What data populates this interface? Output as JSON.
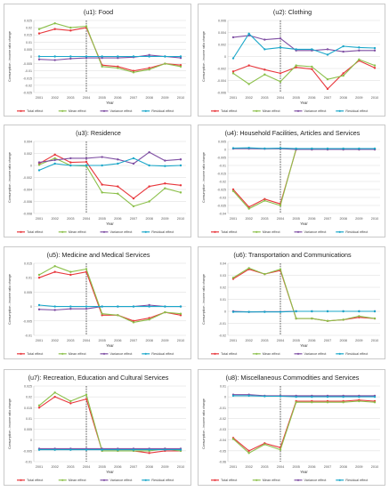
{
  "legend_labels": [
    "Total effect",
    "Mean effect",
    "Variance effect",
    "Residual effect"
  ],
  "colors": {
    "Total effect": "#e8373c",
    "Mean effect": "#8cc04b",
    "Variance effect": "#7f4fa3",
    "Residual effect": "#1aa7c9",
    "grid": "#d9d9d9",
    "border": "#c9c9c9"
  },
  "chart_data": [
    {
      "type": "line",
      "title": "(u1): Food",
      "xlabel": "Year",
      "ylabel": "Consumption - income ratio change",
      "x": [
        "2001",
        "2002",
        "2003",
        "2004",
        "2005",
        "2006",
        "2007",
        "2008",
        "2009",
        "2010"
      ],
      "ylim": [
        -0.025,
        0.025
      ],
      "yticks": [
        "0.025",
        "0.02",
        "0.015",
        "0.01",
        "0.005",
        "0",
        "-0.005",
        "-0.01",
        "-0.015",
        "-0.02",
        "-0.025"
      ],
      "ytick_values": [
        0.025,
        0.02,
        0.015,
        0.01,
        0.005,
        0,
        -0.005,
        -0.01,
        -0.015,
        -0.02,
        -0.025
      ],
      "vline": "2004",
      "series": [
        {
          "name": "Total effect",
          "values": [
            0.016,
            0.019,
            0.018,
            0.02,
            -0.006,
            -0.007,
            -0.01,
            -0.008,
            -0.005,
            -0.006
          ]
        },
        {
          "name": "Mean effect",
          "values": [
            0.019,
            0.023,
            0.02,
            0.021,
            -0.007,
            -0.008,
            -0.011,
            -0.009,
            -0.005,
            -0.007
          ]
        },
        {
          "name": "Variance effect",
          "values": [
            -0.002,
            -0.0025,
            -0.0015,
            -0.001,
            -0.001,
            -0.001,
            -0.0005,
            0.001,
            0,
            -0.001
          ]
        },
        {
          "name": "Residual effect",
          "values": [
            0,
            0,
            0,
            0,
            0,
            0,
            0,
            0,
            0,
            0
          ]
        }
      ]
    },
    {
      "type": "line",
      "title": "(u2): Clothing",
      "xlabel": "Year",
      "ylabel": "Consumption - income ratio change",
      "x": [
        "2001",
        "2002",
        "2003",
        "2004",
        "2005",
        "2006",
        "2007",
        "2008",
        "2009",
        "2010"
      ],
      "ylim": [
        -0.006,
        0.006
      ],
      "yticks": [
        "0.006",
        "0.004",
        "0.002",
        "0",
        "-0.002",
        "-0.004",
        "-0.006"
      ],
      "ytick_values": [
        0.006,
        0.004,
        0.002,
        0,
        -0.002,
        -0.004,
        -0.006
      ],
      "vline": "2004",
      "series": [
        {
          "name": "Total effect",
          "values": [
            -0.0025,
            -0.0015,
            -0.0022,
            -0.0028,
            -0.0018,
            -0.0021,
            -0.0054,
            -0.0028,
            -0.0007,
            -0.0019
          ]
        },
        {
          "name": "Mean effect",
          "values": [
            -0.0028,
            -0.0046,
            -0.003,
            -0.0042,
            -0.0015,
            -0.0017,
            -0.0038,
            -0.0032,
            -0.0005,
            -0.0015
          ]
        },
        {
          "name": "Variance effect",
          "values": [
            0.0032,
            0.0035,
            0.0028,
            0.003,
            0.001,
            0.001,
            0.0012,
            0.0008,
            0.001,
            0.001
          ]
        },
        {
          "name": "Residual effect",
          "values": [
            -0.0003,
            0.0038,
            0.0012,
            0.0015,
            0.0012,
            0.0012,
            0.0003,
            0.0017,
            0.0015,
            0.0014
          ]
        }
      ]
    },
    {
      "type": "line",
      "title": "(u3): Residence",
      "xlabel": "Year",
      "ylabel": "Consumption - income ratio change",
      "x": [
        "2001",
        "2002",
        "2003",
        "2004",
        "2005",
        "2006",
        "2007",
        "2008",
        "2009",
        "2010"
      ],
      "ylim": [
        -0.008,
        0.004
      ],
      "yticks": [
        "0.004",
        "0.002",
        "0",
        "-0.002",
        "-0.004",
        "-0.006",
        "-0.008"
      ],
      "ytick_values": [
        0.004,
        0.002,
        0,
        -0.002,
        -0.004,
        -0.006,
        -0.008
      ],
      "vline": "2004",
      "series": [
        {
          "name": "Total effect",
          "values": [
            0.0003,
            0.0018,
            0.0005,
            0.0006,
            -0.0032,
            -0.0035,
            -0.0055,
            -0.0035,
            -0.003,
            -0.0033
          ]
        },
        {
          "name": "Mean effect",
          "values": [
            0.0001,
            0.0012,
            0,
            -0.0001,
            -0.0045,
            -0.0047,
            -0.0068,
            -0.006,
            -0.0038,
            -0.0045
          ]
        },
        {
          "name": "Variance effect",
          "values": [
            0.0005,
            0.0009,
            0.0012,
            0.0012,
            0.0014,
            0.001,
            0.0003,
            0.0022,
            0.0008,
            0.001
          ]
        },
        {
          "name": "Residual effect",
          "values": [
            -0.0008,
            0.0003,
            0,
            0,
            0,
            0.0003,
            0.0012,
            0,
            -0.0001,
            0
          ]
        }
      ]
    },
    {
      "type": "line",
      "title": "(u4): Household Facilities, Articles and Services",
      "xlabel": "Year",
      "ylabel": "Consumption - income ratio change",
      "x": [
        "2001",
        "2002",
        "2003",
        "2004",
        "2005",
        "2006",
        "2007",
        "2008",
        "2009",
        "2010"
      ],
      "ylim": [
        -0.04,
        0.005
      ],
      "yticks": [
        "0.005",
        "0",
        "-0.005",
        "-0.01",
        "-0.015",
        "-0.02",
        "-0.025",
        "-0.03",
        "-0.035",
        "-0.04"
      ],
      "ytick_values": [
        0.005,
        0,
        -0.005,
        -0.01,
        -0.015,
        -0.02,
        -0.025,
        -0.03,
        -0.035,
        -0.04
      ],
      "vline": "2004",
      "series": [
        {
          "name": "Total effect",
          "values": [
            -0.025,
            -0.036,
            -0.031,
            -0.034,
            0,
            0,
            0,
            0,
            0,
            0
          ]
        },
        {
          "name": "Mean effect",
          "values": [
            -0.026,
            -0.037,
            -0.032,
            -0.035,
            0.0005,
            0.0005,
            0.0005,
            0.0005,
            0.0005,
            0.0005
          ]
        },
        {
          "name": "Variance effect",
          "values": [
            0.0005,
            0.0005,
            0.0004,
            0.0005,
            0,
            0,
            0,
            0,
            0,
            0
          ]
        },
        {
          "name": "Residual effect",
          "values": [
            0.0008,
            0.001,
            0.0006,
            0.0008,
            0.0005,
            0.0005,
            0.0005,
            0.0005,
            0.0005,
            0.0005
          ]
        }
      ]
    },
    {
      "type": "line",
      "title": "(u5): Medicine and Medical Services",
      "xlabel": "Year",
      "ylabel": "Consumption - income ratio change",
      "x": [
        "2001",
        "2002",
        "2003",
        "2004",
        "2005",
        "2006",
        "2007",
        "2008",
        "2009",
        "2010"
      ],
      "ylim": [
        -0.01,
        0.015
      ],
      "yticks": [
        "0.015",
        "0.01",
        "0.005",
        "0",
        "-0.005",
        "-0.01"
      ],
      "ytick_values": [
        0.015,
        0.01,
        0.005,
        0,
        -0.005,
        -0.01
      ],
      "vline": "2004",
      "series": [
        {
          "name": "Total effect",
          "values": [
            0.01,
            0.012,
            0.011,
            0.012,
            -0.003,
            -0.003,
            -0.005,
            -0.004,
            -0.002,
            -0.003
          ]
        },
        {
          "name": "Mean effect",
          "values": [
            0.011,
            0.014,
            0.012,
            0.013,
            -0.0025,
            -0.003,
            -0.0055,
            -0.0045,
            -0.002,
            -0.0025
          ]
        },
        {
          "name": "Variance effect",
          "values": [
            -0.001,
            -0.0012,
            -0.0008,
            -0.0008,
            0,
            0,
            0,
            0.0005,
            0,
            0
          ]
        },
        {
          "name": "Residual effect",
          "values": [
            0.0005,
            0,
            0,
            0,
            0,
            0,
            0,
            0,
            0,
            0
          ]
        }
      ]
    },
    {
      "type": "line",
      "title": "(u6): Transportation and Communications",
      "xlabel": "Year",
      "ylabel": "Consumption - income ratio change",
      "x": [
        "2001",
        "2002",
        "2003",
        "2004",
        "2005",
        "2006",
        "2007",
        "2008",
        "2009",
        "2010"
      ],
      "ylim": [
        -0.02,
        0.04
      ],
      "yticks": [
        "0.04",
        "0.03",
        "0.02",
        "0.01",
        "0",
        "-0.01",
        "-0.02"
      ],
      "ytick_values": [
        0.04,
        0.03,
        0.02,
        0.01,
        0,
        -0.01,
        -0.02
      ],
      "vline": "2004",
      "series": [
        {
          "name": "Total effect",
          "values": [
            0.027,
            0.035,
            0.031,
            0.034,
            -0.006,
            -0.006,
            -0.008,
            -0.007,
            -0.005,
            -0.006
          ]
        },
        {
          "name": "Mean effect",
          "values": [
            0.028,
            0.036,
            0.031,
            0.035,
            -0.006,
            -0.006,
            -0.008,
            -0.007,
            -0.004,
            -0.006
          ]
        },
        {
          "name": "Variance effect",
          "values": [
            0,
            -0.0005,
            -0.0003,
            -0.0003,
            0,
            0,
            0,
            0,
            0,
            0
          ]
        },
        {
          "name": "Residual effect",
          "values": [
            -0.0005,
            -0.0005,
            -0.0005,
            -0.0005,
            0,
            0,
            0,
            0,
            0,
            0
          ]
        }
      ]
    },
    {
      "type": "line",
      "title": "(u7): Recreation, Education and Cultural Services",
      "xlabel": "Year",
      "ylabel": "Consumption - income ratio change",
      "x": [
        "2001",
        "2002",
        "2003",
        "2004",
        "2005",
        "2006",
        "2007",
        "2008",
        "2009",
        "2010"
      ],
      "ylim": [
        -0.01,
        0.025
      ],
      "yticks": [
        "0.025",
        "0.02",
        "0.015",
        "0.01",
        "0.005",
        "0",
        "-0.005",
        "-0.01"
      ],
      "ytick_values": [
        0.025,
        0.02,
        0.015,
        0.01,
        0.005,
        0,
        -0.005,
        -0.01
      ],
      "vline": "2004",
      "series": [
        {
          "name": "Total effect",
          "values": [
            0.015,
            0.02,
            0.017,
            0.019,
            -0.005,
            -0.005,
            -0.005,
            -0.006,
            -0.005,
            -0.005
          ]
        },
        {
          "name": "Mean effect",
          "values": [
            0.016,
            0.022,
            0.018,
            0.021,
            -0.005,
            -0.005,
            -0.005,
            -0.005,
            -0.004,
            -0.005
          ]
        },
        {
          "name": "Variance effect",
          "values": [
            -0.004,
            -0.004,
            -0.004,
            -0.004,
            -0.004,
            -0.004,
            -0.004,
            -0.004,
            -0.004,
            -0.004
          ]
        },
        {
          "name": "Residual effect",
          "values": [
            -0.0045,
            -0.0045,
            -0.0045,
            -0.0045,
            -0.0045,
            -0.0045,
            -0.0045,
            -0.0045,
            -0.0045,
            -0.0045
          ]
        }
      ]
    },
    {
      "type": "line",
      "title": "(u8): Miscellaneous Commodities and Services",
      "xlabel": "Year",
      "ylabel": "Consumption - income ratio change",
      "x": [
        "2001",
        "2002",
        "2003",
        "2004",
        "2005",
        "2006",
        "2007",
        "2008",
        "2009",
        "2010"
      ],
      "ylim": [
        -0.06,
        0.01
      ],
      "yticks": [
        "0.01",
        "0",
        "-0.01",
        "-0.02",
        "-0.03",
        "-0.04",
        "-0.05",
        "-0.06"
      ],
      "ytick_values": [
        0.01,
        0,
        -0.01,
        -0.02,
        -0.03,
        -0.04,
        -0.05,
        -0.06
      ],
      "vline": "2004",
      "series": [
        {
          "name": "Total effect",
          "values": [
            -0.038,
            -0.05,
            -0.043,
            -0.047,
            -0.004,
            -0.004,
            -0.004,
            -0.004,
            -0.003,
            -0.004
          ]
        },
        {
          "name": "Mean effect",
          "values": [
            -0.039,
            -0.052,
            -0.044,
            -0.049,
            -0.005,
            -0.005,
            -0.005,
            -0.005,
            -0.004,
            -0.005
          ]
        },
        {
          "name": "Variance effect",
          "values": [
            0.002,
            0.002,
            0.001,
            0.001,
            0.001,
            0.001,
            0.001,
            0.001,
            0.001,
            0.001
          ]
        },
        {
          "name": "Residual effect",
          "values": [
            0.001,
            0.001,
            0.0005,
            0.0005,
            0,
            0,
            0,
            0,
            0,
            0
          ]
        }
      ]
    }
  ]
}
